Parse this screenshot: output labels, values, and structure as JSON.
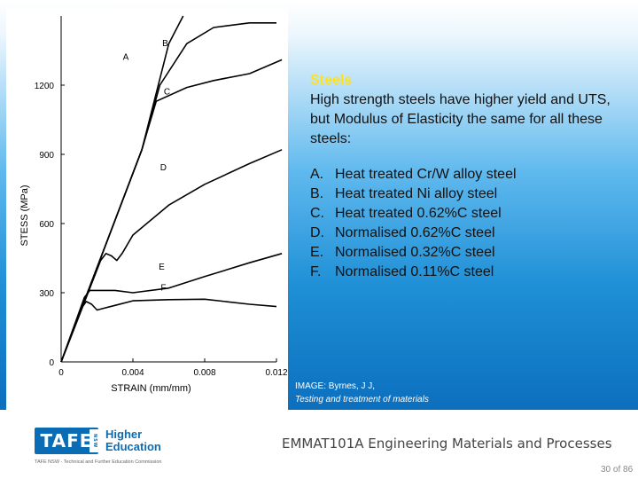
{
  "slide": {
    "heading": "Steels",
    "body": "High strength steels have higher yield and UTS, but Modulus of Elasticity the same for all these steels:",
    "list": [
      {
        "key": "A.",
        "text": "Heat treated Cr/W alloy steel"
      },
      {
        "key": "B.",
        "text": "Heat treated Ni alloy steel"
      },
      {
        "key": "C.",
        "text": "Heat treated 0.62%C steel"
      },
      {
        "key": "D.",
        "text": "Normalised 0.62%C steel"
      },
      {
        "key": "E.",
        "text": "Normalised 0.32%C steel"
      },
      {
        "key": "F.",
        "text": "Normalised 0.11%C steel"
      }
    ],
    "credit": {
      "line1": "IMAGE: Byrnes, J J,",
      "line2": "Testing and treatment of materials"
    }
  },
  "footer": {
    "logo_text": "TAFE",
    "logo_badge": "NSW",
    "logo_sub1": "Higher",
    "logo_sub2": "Education",
    "agency": "TAFE NSW - Technical and Further Education Commission",
    "course": "EMMAT101A Engineering Materials and Processes",
    "page": "30 of 86"
  },
  "colors": {
    "heading": "#ffe21a",
    "brand": "#0a6cb5",
    "slide_blue": "#1e8fd6"
  },
  "chart_data": {
    "type": "line",
    "xlabel": "STRAIN (mm/mm)",
    "ylabel": "STESS (MPa)",
    "xlim": [
      0,
      0.012
    ],
    "ylim": [
      0,
      1500
    ],
    "x_ticks": [
      0,
      0.004,
      0.008,
      0.012
    ],
    "x_tick_labels": [
      "0",
      "0.004",
      "0.008",
      "0.012"
    ],
    "y_ticks": [
      0,
      300,
      600,
      900,
      1200
    ],
    "y_tick_labels": [
      "0",
      "300",
      "600",
      "900",
      "1200"
    ],
    "series": [
      {
        "name": "A",
        "points": [
          [
            0,
            0
          ],
          [
            0.0045,
            920
          ],
          [
            0.006,
            1380
          ],
          [
            0.0068,
            1500
          ]
        ]
      },
      {
        "name": "B",
        "points": [
          [
            0,
            0
          ],
          [
            0.0045,
            920
          ],
          [
            0.0055,
            1200
          ],
          [
            0.007,
            1380
          ],
          [
            0.0085,
            1450
          ],
          [
            0.0105,
            1470
          ],
          [
            0.012,
            1470
          ]
        ]
      },
      {
        "name": "C",
        "points": [
          [
            0,
            0
          ],
          [
            0.0045,
            920
          ],
          [
            0.0048,
            1000
          ],
          [
            0.0053,
            1130
          ],
          [
            0.007,
            1190
          ],
          [
            0.0085,
            1220
          ],
          [
            0.0105,
            1250
          ],
          [
            0.0123,
            1310
          ]
        ]
      },
      {
        "name": "D",
        "points": [
          [
            0,
            0
          ],
          [
            0.0022,
            440
          ],
          [
            0.0025,
            470
          ],
          [
            0.0028,
            460
          ],
          [
            0.0031,
            440
          ],
          [
            0.0034,
            470
          ],
          [
            0.004,
            550
          ],
          [
            0.006,
            680
          ],
          [
            0.008,
            770
          ],
          [
            0.0105,
            860
          ],
          [
            0.0123,
            920
          ]
        ]
      },
      {
        "name": "E",
        "points": [
          [
            0,
            0
          ],
          [
            0.0013,
            280
          ],
          [
            0.0016,
            310
          ],
          [
            0.002,
            310
          ],
          [
            0.003,
            310
          ],
          [
            0.004,
            300
          ],
          [
            0.006,
            320
          ],
          [
            0.008,
            370
          ],
          [
            0.0105,
            430
          ],
          [
            0.0123,
            470
          ]
        ]
      },
      {
        "name": "F",
        "points": [
          [
            0,
            0
          ],
          [
            0.0012,
            240
          ],
          [
            0.0014,
            262
          ],
          [
            0.0017,
            250
          ],
          [
            0.002,
            225
          ],
          [
            0.0025,
            235
          ],
          [
            0.004,
            265
          ],
          [
            0.006,
            270
          ],
          [
            0.008,
            272
          ],
          [
            0.0105,
            250
          ],
          [
            0.012,
            240
          ]
        ]
      }
    ],
    "series_label_positions": [
      {
        "name": "A",
        "x": 0.0036,
        "y": 1310
      },
      {
        "name": "B",
        "x": 0.0058,
        "y": 1370
      },
      {
        "name": "C",
        "x": 0.0059,
        "y": 1160
      },
      {
        "name": "D",
        "x": 0.0057,
        "y": 830
      },
      {
        "name": "E",
        "x": 0.0056,
        "y": 400
      },
      {
        "name": "F",
        "x": 0.0057,
        "y": 310
      }
    ],
    "grid": false
  }
}
